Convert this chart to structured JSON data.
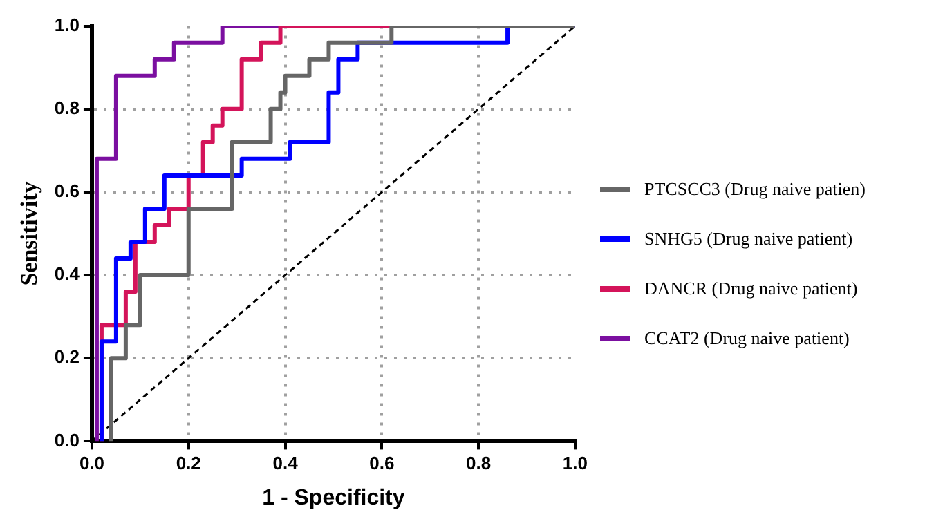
{
  "chart_data": {
    "type": "line",
    "xlabel": "1 - Specificity",
    "ylabel": "Sensitivity",
    "xlim": [
      0,
      1
    ],
    "ylim": [
      0,
      1
    ],
    "xticks": [
      {
        "value": 0,
        "label": "0.0"
      },
      0.2,
      0.4,
      0.6,
      0.8,
      {
        "value": 1,
        "label": "1.0"
      }
    ],
    "yticks": [
      {
        "value": 0,
        "label": "0.0"
      },
      0.2,
      0.4,
      0.6,
      0.8,
      {
        "value": 1,
        "label": "1.0"
      }
    ],
    "grid": true,
    "legend": "right",
    "marker": "none",
    "line_style": "solid",
    "series": [
      {
        "name": "PTCSCC3 (Drug naive patien)",
        "color": "#666666",
        "x": [
          0.04,
          0.04,
          0.07,
          0.07,
          0.1,
          0.1,
          0.2,
          0.2,
          0.29,
          0.29,
          0.37,
          0.37,
          0.39,
          0.39,
          0.4,
          0.4,
          0.45,
          0.45,
          0.49,
          0.49,
          0.62,
          0.62,
          1
        ],
        "values": [
          0,
          0.2,
          0.2,
          0.28,
          0.28,
          0.4,
          0.4,
          0.56,
          0.56,
          0.72,
          0.72,
          0.8,
          0.8,
          0.84,
          0.84,
          0.88,
          0.88,
          0.92,
          0.92,
          0.96,
          0.96,
          1,
          1
        ]
      },
      {
        "name": "SNHG5 (Drug naive patient)",
        "color": "#0000ff",
        "x": [
          0.02,
          0.02,
          0.05,
          0.05,
          0.08,
          0.08,
          0.11,
          0.11,
          0.15,
          0.15,
          0.31,
          0.31,
          0.41,
          0.41,
          0.49,
          0.49,
          0.51,
          0.51,
          0.55,
          0.55,
          0.86,
          0.86,
          1
        ],
        "values": [
          0,
          0.24,
          0.24,
          0.44,
          0.44,
          0.48,
          0.48,
          0.56,
          0.56,
          0.64,
          0.64,
          0.68,
          0.68,
          0.72,
          0.72,
          0.84,
          0.84,
          0.92,
          0.92,
          0.96,
          0.96,
          1,
          1
        ]
      },
      {
        "name": "DANCR (Drug naive patient)",
        "color": "#d4145a",
        "x": [
          0.02,
          0.02,
          0.07,
          0.07,
          0.09,
          0.09,
          0.13,
          0.13,
          0.16,
          0.16,
          0.2,
          0.2,
          0.23,
          0.23,
          0.25,
          0.25,
          0.27,
          0.27,
          0.31,
          0.31,
          0.35,
          0.35,
          0.39,
          0.39,
          1
        ],
        "values": [
          0,
          0.28,
          0.28,
          0.36,
          0.36,
          0.48,
          0.48,
          0.52,
          0.52,
          0.56,
          0.56,
          0.64,
          0.64,
          0.72,
          0.72,
          0.76,
          0.76,
          0.8,
          0.8,
          0.92,
          0.92,
          0.96,
          0.96,
          1,
          1
        ]
      },
      {
        "name": "CCAT2 (Drug naive patient)",
        "color": "#7b0fa0",
        "x": [
          0.01,
          0.01,
          0.05,
          0.05,
          0.13,
          0.13,
          0.17,
          0.17,
          0.27,
          0.27,
          1
        ],
        "values": [
          0,
          0.68,
          0.68,
          0.88,
          0.88,
          0.92,
          0.92,
          0.96,
          0.96,
          1,
          1
        ]
      },
      {
        "color": "#000000",
        "line_style": "dashed",
        "x": [
          0,
          1
        ],
        "values": [
          0,
          1
        ]
      }
    ]
  }
}
